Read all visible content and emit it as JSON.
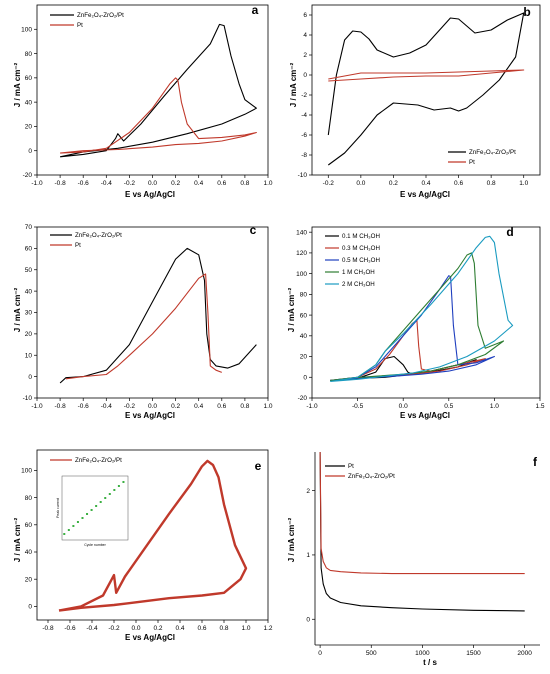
{
  "chart_data": [
    {
      "panel": "a",
      "type": "line",
      "xlabel": "E vs Ag/AgCl",
      "ylabel": "J / mA cm⁻²",
      "xlim": [
        -1.0,
        1.0
      ],
      "ylim": [
        -20,
        120
      ],
      "xticks": [
        -1.0,
        -0.8,
        -0.6,
        -0.4,
        -0.2,
        0.0,
        0.2,
        0.4,
        0.6,
        0.8,
        1.0
      ],
      "yticks": [
        -20,
        0,
        20,
        40,
        60,
        80,
        100
      ],
      "legend_position": "top-left",
      "series": [
        {
          "name": "ZnFe₂O₄-ZrO₂/Pt",
          "color": "#000000",
          "x": [
            -0.8,
            -0.6,
            -0.4,
            -0.32,
            -0.3,
            -0.25,
            -0.1,
            0.1,
            0.3,
            0.5,
            0.58,
            0.62,
            0.68,
            0.75,
            0.8,
            0.9,
            0.8,
            0.6,
            0.3,
            0.0,
            -0.3,
            -0.6,
            -0.8
          ],
          "y": [
            -5,
            -3,
            0,
            10,
            14,
            8,
            22,
            45,
            67,
            88,
            104,
            103,
            78,
            55,
            42,
            35,
            30,
            22,
            14,
            7,
            2,
            -1,
            -5
          ]
        },
        {
          "name": "Pt",
          "color": "#c0392b",
          "x": [
            -0.8,
            -0.6,
            -0.4,
            -0.2,
            0.0,
            0.15,
            0.2,
            0.22,
            0.25,
            0.3,
            0.4,
            0.6,
            0.8,
            0.9,
            0.8,
            0.6,
            0.4,
            0.2,
            0.0,
            -0.3,
            -0.6,
            -0.8
          ],
          "y": [
            -2,
            -1,
            2,
            15,
            35,
            55,
            60,
            58,
            40,
            22,
            10,
            11,
            13,
            15,
            12,
            8,
            6,
            5,
            3,
            1,
            0,
            -2
          ]
        }
      ]
    },
    {
      "panel": "b",
      "type": "line",
      "xlabel": "E vs Ag/AgCl",
      "ylabel": "J / mA cm⁻²",
      "xlim": [
        -0.3,
        1.1
      ],
      "ylim": [
        -10,
        7
      ],
      "xticks": [
        -0.2,
        0.0,
        0.2,
        0.4,
        0.6,
        0.8,
        1.0
      ],
      "yticks": [
        -10,
        -8,
        -6,
        -4,
        -2,
        0,
        2,
        4,
        6
      ],
      "legend_position": "bottom-right",
      "series": [
        {
          "name": "ZnFe₂O₄-ZrO₂/Pt",
          "color": "#000000",
          "x": [
            -0.2,
            -0.15,
            -0.1,
            -0.05,
            0.0,
            0.05,
            0.1,
            0.2,
            0.3,
            0.4,
            0.5,
            0.55,
            0.6,
            0.7,
            0.8,
            0.9,
            1.0,
            0.95,
            0.85,
            0.75,
            0.65,
            0.6,
            0.55,
            0.45,
            0.35,
            0.2,
            0.1,
            0.0,
            -0.1,
            -0.2
          ],
          "y": [
            -6,
            0,
            3.5,
            4.4,
            4.3,
            3.6,
            2.5,
            1.8,
            2.2,
            3.0,
            4.8,
            5.7,
            5.6,
            4.2,
            4.5,
            5.5,
            6.2,
            1.8,
            -0.5,
            -2.0,
            -3.3,
            -3.6,
            -3.3,
            -3.5,
            -3.0,
            -2.8,
            -4.0,
            -6.0,
            -7.8,
            -9.0
          ]
        },
        {
          "name": "Pt",
          "color": "#c0392b",
          "x": [
            -0.2,
            0.0,
            0.2,
            0.4,
            0.6,
            0.8,
            1.0,
            0.8,
            0.6,
            0.4,
            0.2,
            0.0,
            -0.2
          ],
          "y": [
            -0.4,
            0.2,
            0.2,
            0.2,
            0.3,
            0.4,
            0.5,
            0.2,
            -0.1,
            -0.1,
            -0.2,
            -0.4,
            -0.6
          ]
        }
      ]
    },
    {
      "panel": "c",
      "type": "line",
      "xlabel": "E vs Ag/AgCl",
      "ylabel": "J / mA cm⁻²",
      "xlim": [
        -1.0,
        1.0
      ],
      "ylim": [
        -10,
        70
      ],
      "xticks": [
        -1.0,
        -0.8,
        -0.6,
        -0.4,
        -0.2,
        0.0,
        0.2,
        0.4,
        0.6,
        0.8,
        1.0
      ],
      "yticks": [
        -10,
        0,
        10,
        20,
        30,
        40,
        50,
        60,
        70
      ],
      "legend_position": "top-left",
      "series": [
        {
          "name": "ZnFe₂O₄-ZrO₂/Pt",
          "color": "#000000",
          "x": [
            -0.8,
            -0.75,
            -0.6,
            -0.4,
            -0.2,
            0.0,
            0.2,
            0.3,
            0.4,
            0.45,
            0.47,
            0.5,
            0.55,
            0.65,
            0.75,
            0.9
          ],
          "y": [
            -3,
            -0.5,
            0,
            3,
            15,
            35,
            55,
            60,
            57,
            45,
            20,
            8,
            5,
            4,
            6,
            15
          ]
        },
        {
          "name": "Pt",
          "color": "#c0392b",
          "x": [
            -0.75,
            -0.6,
            -0.4,
            -0.3,
            -0.2,
            0.0,
            0.2,
            0.4,
            0.46,
            0.48,
            0.5,
            0.55,
            0.6
          ],
          "y": [
            -1,
            0,
            1,
            5,
            10,
            20,
            32,
            46,
            48,
            30,
            5,
            3,
            2
          ]
        }
      ]
    },
    {
      "panel": "d",
      "type": "line",
      "xlabel": "E vs Ag/AgCl",
      "ylabel": "J / mA cm⁻²",
      "xlim": [
        -1.0,
        1.5
      ],
      "ylim": [
        -20,
        145
      ],
      "xticks": [
        -1.0,
        -0.5,
        0.0,
        0.5,
        1.0,
        1.5
      ],
      "yticks": [
        -20,
        0,
        20,
        40,
        60,
        80,
        100,
        120,
        140
      ],
      "legend_position": "top-left",
      "series": [
        {
          "name": "0.1 M CH₃OH",
          "color": "#000000",
          "x": [
            -0.8,
            -0.5,
            -0.3,
            -0.2,
            -0.1,
            0.0,
            0.05,
            0.1,
            0.2,
            0.3,
            0.5,
            0.7,
            0.8,
            0.6,
            0.3,
            0.0,
            -0.2,
            -0.5,
            -0.8
          ],
          "y": [
            -3,
            -1,
            5,
            18,
            20,
            12,
            5,
            3,
            4,
            6,
            10,
            14,
            17,
            10,
            5,
            2,
            0,
            -1,
            -3
          ]
        },
        {
          "name": "0.3 M CH₃OH",
          "color": "#c0392b",
          "x": [
            -0.8,
            -0.5,
            -0.3,
            -0.15,
            0.0,
            0.1,
            0.15,
            0.17,
            0.2,
            0.3,
            0.5,
            0.7,
            0.9,
            0.7,
            0.4,
            0.1,
            -0.2,
            -0.5,
            -0.8
          ],
          "y": [
            -3,
            0,
            8,
            22,
            40,
            52,
            55,
            30,
            8,
            6,
            10,
            14,
            18,
            12,
            6,
            3,
            1,
            -1,
            -3
          ]
        },
        {
          "name": "0.5 M CH₃OH",
          "color": "#1f3fbf",
          "x": [
            -0.8,
            -0.5,
            -0.3,
            -0.2,
            0.0,
            0.2,
            0.4,
            0.5,
            0.52,
            0.55,
            0.6,
            0.8,
            1.0,
            0.8,
            0.5,
            0.2,
            -0.1,
            -0.5,
            -0.8
          ],
          "y": [
            -3,
            0,
            10,
            20,
            40,
            60,
            85,
            98,
            97,
            50,
            12,
            14,
            20,
            12,
            6,
            3,
            1,
            -1,
            -3
          ]
        },
        {
          "name": "1 M CH₃OH",
          "color": "#2e7d32",
          "x": [
            -0.8,
            -0.5,
            -0.3,
            -0.2,
            0.0,
            0.2,
            0.4,
            0.6,
            0.7,
            0.75,
            0.78,
            0.82,
            0.9,
            1.1,
            0.9,
            0.6,
            0.3,
            0.0,
            -0.3,
            -0.6,
            -0.8
          ],
          "y": [
            -3,
            0,
            12,
            25,
            45,
            65,
            85,
            105,
            118,
            120,
            110,
            50,
            28,
            35,
            22,
            12,
            6,
            3,
            1,
            -1,
            -3
          ]
        },
        {
          "name": "2 M CH₃OH",
          "color": "#1a9bc0",
          "x": [
            -0.8,
            -0.5,
            -0.3,
            -0.2,
            0.0,
            0.3,
            0.6,
            0.8,
            0.9,
            0.95,
            1.0,
            1.05,
            1.15,
            1.2,
            1.0,
            0.7,
            0.4,
            0.1,
            -0.2,
            -0.5,
            -0.8
          ],
          "y": [
            -4,
            0,
            12,
            25,
            42,
            70,
            100,
            125,
            135,
            136,
            130,
            100,
            55,
            50,
            35,
            20,
            10,
            4,
            1,
            -2,
            -4
          ]
        }
      ]
    },
    {
      "panel": "e",
      "type": "line",
      "xlabel": "E vs Ag/AgCl",
      "ylabel": "J / mA cm⁻²",
      "xlim": [
        -0.9,
        1.2
      ],
      "ylim": [
        -10,
        115
      ],
      "xticks": [
        -0.8,
        -0.6,
        -0.4,
        -0.2,
        0.0,
        0.2,
        0.4,
        0.6,
        0.8,
        1.0,
        1.2
      ],
      "yticks": [
        0,
        20,
        40,
        60,
        80,
        100
      ],
      "legend_position": "top-left",
      "series": [
        {
          "name": "ZnFe₂O₄-ZrO₂/Pt",
          "color": "#c0392b",
          "x": [
            -0.7,
            -0.5,
            -0.3,
            -0.22,
            -0.2,
            -0.18,
            -0.1,
            0.1,
            0.3,
            0.5,
            0.6,
            0.65,
            0.7,
            0.75,
            0.8,
            0.9,
            1.0,
            0.95,
            0.8,
            0.6,
            0.3,
            0.0,
            -0.2,
            -0.5,
            -0.7
          ],
          "y": [
            -3,
            0,
            8,
            20,
            23,
            10,
            22,
            45,
            68,
            90,
            103,
            107,
            104,
            95,
            75,
            45,
            28,
            20,
            10,
            8,
            6,
            3,
            1,
            -1,
            -3
          ]
        }
      ],
      "inset": {
        "xlabel": "Cycle number",
        "ylabel": "Peak current",
        "color": "#3cb043",
        "x": [
          20,
          30,
          40,
          50,
          60,
          70,
          80,
          90,
          100,
          110,
          120,
          130,
          140,
          150
        ],
        "y": [
          61,
          63,
          65,
          67,
          69,
          71,
          73,
          75,
          77,
          79,
          81,
          83,
          85,
          87
        ]
      }
    },
    {
      "panel": "f",
      "type": "line",
      "xlabel": "t / s",
      "ylabel": "J / mA cm⁻²",
      "xlim": [
        -50,
        2150
      ],
      "ylim": [
        -0.4,
        2.6
      ],
      "xticks": [
        0,
        500,
        1000,
        1500,
        2000
      ],
      "yticks": [
        0,
        1,
        2
      ],
      "legend_position": "top-left",
      "series": [
        {
          "name": "Pt",
          "color": "#000000",
          "x": [
            0,
            10,
            30,
            60,
            100,
            200,
            400,
            700,
            1000,
            1500,
            2000
          ],
          "y": [
            2.6,
            0.8,
            0.55,
            0.4,
            0.33,
            0.26,
            0.21,
            0.18,
            0.16,
            0.14,
            0.13
          ]
        },
        {
          "name": "ZnFe₂O₄-ZrO₂/Pt",
          "color": "#c0392b",
          "x": [
            0,
            10,
            30,
            60,
            100,
            200,
            400,
            700,
            1000,
            1500,
            2000
          ],
          "y": [
            2.6,
            1.1,
            0.9,
            0.8,
            0.76,
            0.74,
            0.72,
            0.71,
            0.71,
            0.71,
            0.71
          ]
        }
      ]
    }
  ]
}
